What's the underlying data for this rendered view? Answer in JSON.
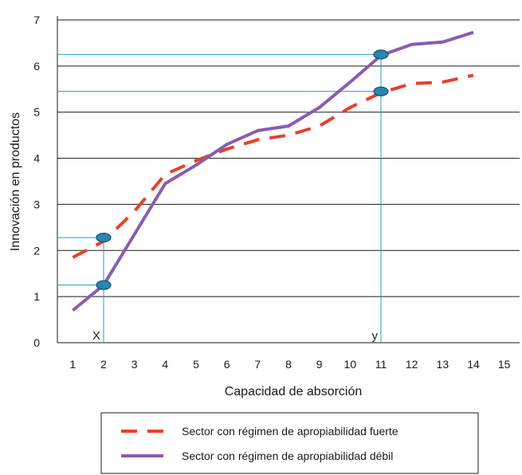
{
  "chart_data": {
    "type": "line",
    "title": "",
    "xlabel": "Capacidad de absorción",
    "ylabel": "Innovación en productos",
    "xlim": [
      0.5,
      15.5
    ],
    "ylim": [
      0,
      7
    ],
    "x_ticks": [
      1,
      2,
      3,
      4,
      5,
      6,
      7,
      8,
      9,
      10,
      11,
      12,
      13,
      14,
      15
    ],
    "y_ticks": [
      0,
      1,
      2,
      3,
      4,
      5,
      6,
      7
    ],
    "grid": "horizontal",
    "legend_position": "bottom",
    "series": [
      {
        "name": "Sector con régimen de apropiabilidad fuerte",
        "style": "dashed",
        "color": "#e8402a",
        "points": [
          [
            1,
            1.85
          ],
          [
            2,
            2.2
          ],
          [
            3,
            2.85
          ],
          [
            4,
            3.65
          ],
          [
            5,
            3.95
          ],
          [
            6,
            4.2
          ],
          [
            7,
            4.4
          ],
          [
            8,
            4.5
          ],
          [
            9,
            4.7
          ],
          [
            10,
            5.1
          ],
          [
            11,
            5.42
          ],
          [
            12,
            5.62
          ],
          [
            13,
            5.65
          ],
          [
            14,
            5.8
          ]
        ]
      },
      {
        "name": "Sector con régimen de apropiabilidad débil",
        "style": "solid",
        "color": "#8a5cb0",
        "points": [
          [
            1,
            0.7
          ],
          [
            2,
            1.25
          ],
          [
            3,
            2.35
          ],
          [
            4,
            3.45
          ],
          [
            5,
            3.85
          ],
          [
            6,
            4.3
          ],
          [
            7,
            4.6
          ],
          [
            8,
            4.7
          ],
          [
            9,
            5.1
          ],
          [
            10,
            5.65
          ],
          [
            11,
            6.23
          ],
          [
            12,
            6.47
          ],
          [
            13,
            6.52
          ],
          [
            14,
            6.73
          ]
        ]
      }
    ],
    "markers": [
      {
        "name": "x",
        "label": "X",
        "x": 2
      },
      {
        "name": "y",
        "label": "y",
        "x": 11
      }
    ],
    "highlight_points": [
      {
        "x": 2,
        "y": 2.28
      },
      {
        "x": 2,
        "y": 1.25
      },
      {
        "x": 11,
        "y": 6.25
      },
      {
        "x": 11,
        "y": 5.45
      }
    ],
    "reference_color": "#2a9bc7",
    "marker_fill": "#2a86b0"
  }
}
